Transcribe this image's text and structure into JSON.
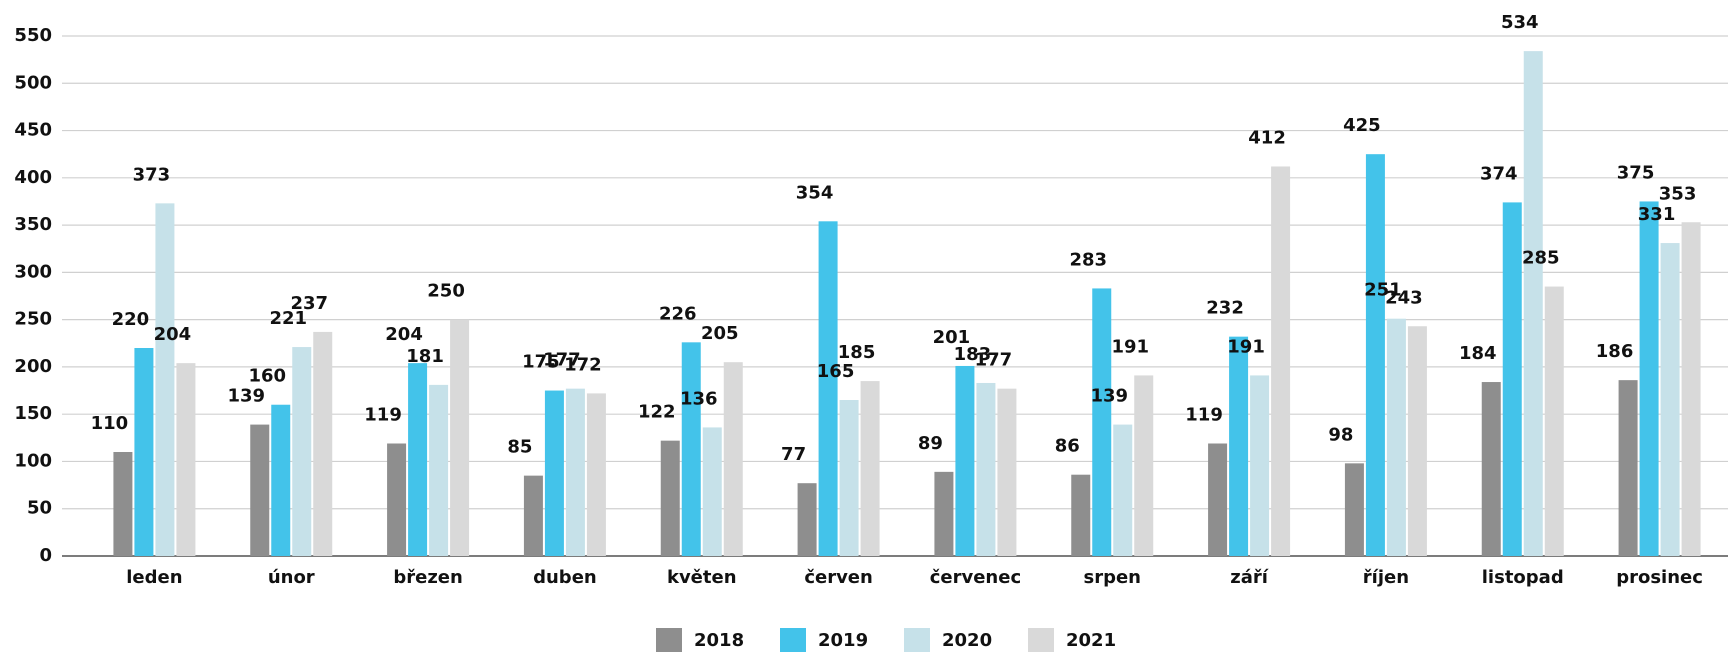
{
  "chart_data": {
    "type": "bar",
    "categories": [
      "leden",
      "únor",
      "březen",
      "duben",
      "květen",
      "červen",
      "červenec",
      "srpen",
      "září",
      "říjen",
      "listopad",
      "prosinec"
    ],
    "series": [
      {
        "name": "2018",
        "color": "#8e8e8e",
        "values": [
          110,
          139,
          119,
          85,
          122,
          77,
          89,
          86,
          119,
          98,
          184,
          186
        ]
      },
      {
        "name": "2019",
        "color": "#43c3ea",
        "values": [
          220,
          160,
          204,
          175,
          226,
          354,
          201,
          283,
          232,
          425,
          374,
          375
        ]
      },
      {
        "name": "2020",
        "color": "#c6e1e9",
        "values": [
          373,
          221,
          181,
          177,
          136,
          165,
          183,
          139,
          191,
          251,
          534,
          331
        ]
      },
      {
        "name": "2021",
        "color": "#d9d9d9",
        "values": [
          204,
          237,
          250,
          172,
          205,
          185,
          177,
          191,
          412,
          243,
          285,
          353
        ]
      }
    ],
    "ylim": [
      0,
      550
    ],
    "yticks": [
      0,
      50,
      100,
      150,
      200,
      250,
      300,
      350,
      400,
      450,
      500,
      550
    ],
    "grid": true,
    "legend": "bottom"
  }
}
